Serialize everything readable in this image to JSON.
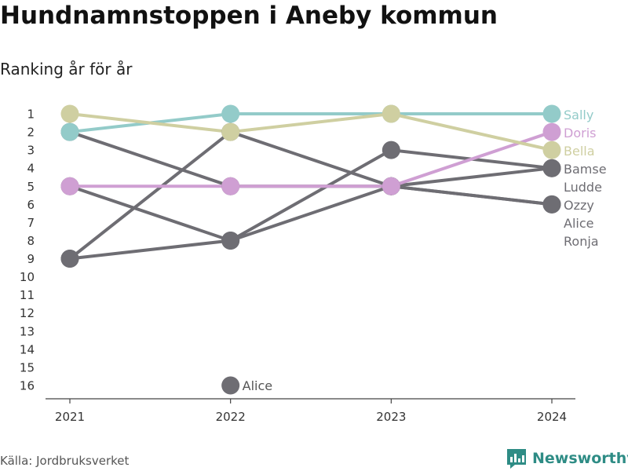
{
  "title": "Hundnamnstoppen i Aneby kommun",
  "subtitle": "Ranking år för år",
  "source": "Källa: Jordbruksverket",
  "brand": "Newsworthy",
  "chart_data": {
    "type": "line",
    "x": [
      "2021",
      "2022",
      "2023",
      "2024"
    ],
    "y_ticks": [
      1,
      2,
      3,
      4,
      5,
      6,
      7,
      8,
      9,
      10,
      11,
      12,
      13,
      14,
      15,
      16
    ],
    "ylim": [
      16,
      1
    ],
    "series": [
      {
        "name": "Sally",
        "color": "#93cbc9",
        "ranks": [
          2,
          1,
          1,
          1
        ],
        "highlight": true
      },
      {
        "name": "Doris",
        "color": "#cf9fd3",
        "ranks": [
          5,
          5,
          5,
          2
        ],
        "highlight": true
      },
      {
        "name": "Bella",
        "color": "#cfcfa1",
        "ranks": [
          1,
          2,
          1,
          3
        ],
        "highlight": true
      },
      {
        "name": "Bamse",
        "color": "#6e6d73",
        "ranks": [
          9,
          2,
          5,
          4
        ],
        "highlight": false
      },
      {
        "name": "Ludde",
        "color": "#6e6d73",
        "ranks": [
          9,
          8,
          3,
          4
        ],
        "highlight": false
      },
      {
        "name": "Ozzy",
        "color": "#6e6d73",
        "ranks": [
          2,
          5,
          5,
          6
        ],
        "highlight": false
      },
      {
        "name": "Alice",
        "color": "#6e6d73",
        "ranks": [
          null,
          16,
          null,
          null
        ],
        "highlight": false
      },
      {
        "name": "Ronja",
        "color": "#6e6d73",
        "ranks": [
          5,
          8,
          5,
          6
        ],
        "highlight": false
      }
    ],
    "end_labels": [
      {
        "text": "Sally",
        "color": "#93cbc9"
      },
      {
        "text": "Doris",
        "color": "#cf9fd3"
      },
      {
        "text": "Bella",
        "color": "#cfcfa1"
      },
      {
        "text": "Bamse",
        "color": "#6e6d73"
      },
      {
        "text": "Ludde",
        "color": "#6e6d73"
      },
      {
        "text": "Ozzy",
        "color": "#6e6d73"
      },
      {
        "text": "Alice",
        "color": "#6e6d73"
      },
      {
        "text": "Ronja",
        "color": "#6e6d73"
      }
    ],
    "annotations": [
      {
        "text": "Alice",
        "x": "2022",
        "rank": 16
      }
    ]
  }
}
